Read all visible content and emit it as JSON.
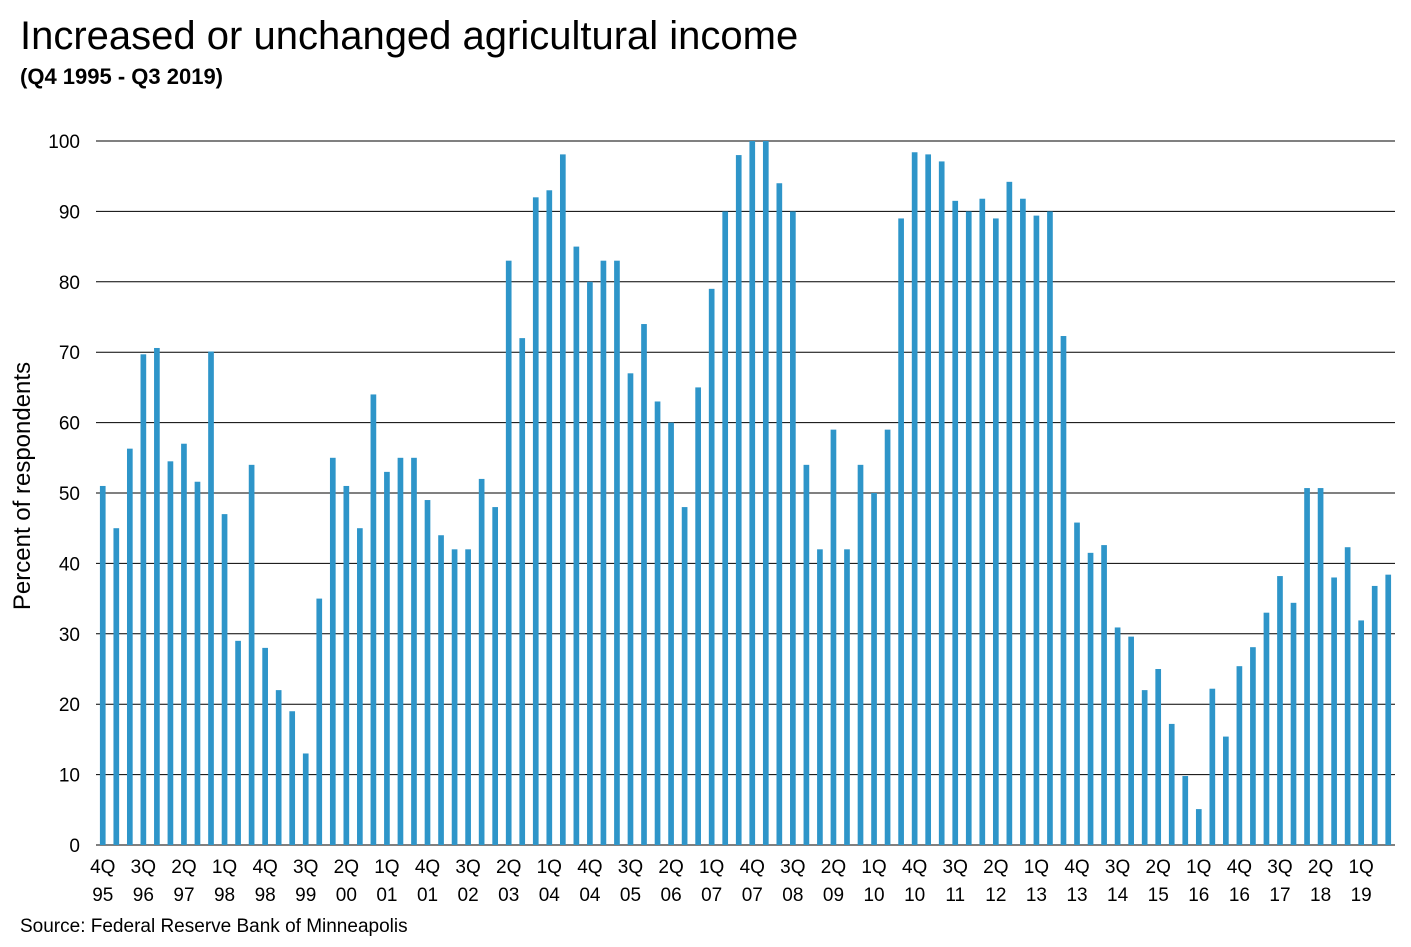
{
  "title": "Increased or unchanged agricultural income",
  "subtitle": "(Q4 1995 - Q3 2019)",
  "source": "Source: Federal Reserve Bank of Minneapolis",
  "colors": {
    "bar": "#2e95c9",
    "grid": "#000000"
  },
  "chart_data": {
    "type": "bar",
    "ylabel": "Percent of respondents",
    "xlabel": "",
    "ylim": [
      0,
      100
    ],
    "yticks": [
      0,
      10,
      20,
      30,
      40,
      50,
      60,
      70,
      80,
      90,
      100
    ],
    "grid": true,
    "legend": "none",
    "x_tick_labels": [
      {
        "index": 0,
        "quarter": "4Q",
        "year": "95"
      },
      {
        "index": 3,
        "quarter": "3Q",
        "year": "96"
      },
      {
        "index": 6,
        "quarter": "2Q",
        "year": "97"
      },
      {
        "index": 9,
        "quarter": "1Q",
        "year": "98"
      },
      {
        "index": 12,
        "quarter": "4Q",
        "year": "98"
      },
      {
        "index": 15,
        "quarter": "3Q",
        "year": "99"
      },
      {
        "index": 18,
        "quarter": "2Q",
        "year": "00"
      },
      {
        "index": 21,
        "quarter": "1Q",
        "year": "01"
      },
      {
        "index": 24,
        "quarter": "4Q",
        "year": "01"
      },
      {
        "index": 27,
        "quarter": "3Q",
        "year": "02"
      },
      {
        "index": 30,
        "quarter": "2Q",
        "year": "03"
      },
      {
        "index": 33,
        "quarter": "1Q",
        "year": "04"
      },
      {
        "index": 36,
        "quarter": "4Q",
        "year": "04"
      },
      {
        "index": 39,
        "quarter": "3Q",
        "year": "05"
      },
      {
        "index": 42,
        "quarter": "2Q",
        "year": "06"
      },
      {
        "index": 45,
        "quarter": "1Q",
        "year": "07"
      },
      {
        "index": 48,
        "quarter": "4Q",
        "year": "07"
      },
      {
        "index": 51,
        "quarter": "3Q",
        "year": "08"
      },
      {
        "index": 54,
        "quarter": "2Q",
        "year": "09"
      },
      {
        "index": 57,
        "quarter": "1Q",
        "year": "10"
      },
      {
        "index": 60,
        "quarter": "4Q",
        "year": "10"
      },
      {
        "index": 63,
        "quarter": "3Q",
        "year": "11"
      },
      {
        "index": 66,
        "quarter": "2Q",
        "year": "12"
      },
      {
        "index": 69,
        "quarter": "1Q",
        "year": "13"
      },
      {
        "index": 72,
        "quarter": "4Q",
        "year": "13"
      },
      {
        "index": 75,
        "quarter": "3Q",
        "year": "14"
      },
      {
        "index": 78,
        "quarter": "2Q",
        "year": "15"
      },
      {
        "index": 81,
        "quarter": "1Q",
        "year": "16"
      },
      {
        "index": 84,
        "quarter": "4Q",
        "year": "16"
      },
      {
        "index": 87,
        "quarter": "3Q",
        "year": "17"
      },
      {
        "index": 90,
        "quarter": "2Q",
        "year": "18"
      },
      {
        "index": 93,
        "quarter": "1Q",
        "year": "19"
      }
    ],
    "values": [
      51,
      45,
      56.3,
      69.7,
      70.6,
      54.5,
      57,
      51.6,
      70.1,
      47,
      29,
      54,
      28,
      22,
      19,
      13,
      35,
      55,
      51,
      45,
      64,
      53,
      55,
      55,
      49,
      44,
      42,
      42,
      52,
      48,
      83,
      72,
      92,
      93,
      98.1,
      85,
      80,
      83,
      83,
      67,
      74,
      63,
      60,
      48,
      65,
      79,
      90,
      98,
      100,
      100,
      94,
      90,
      54,
      42,
      59,
      42,
      54,
      50,
      59,
      89,
      98.4,
      98.1,
      97.1,
      91.5,
      90,
      91.8,
      89,
      94.2,
      91.8,
      89.4,
      90,
      72.3,
      45.8,
      41.5,
      42.6,
      30.9,
      29.6,
      22,
      25,
      17.2,
      9.8,
      5.1,
      22.2,
      15.4,
      25.4,
      28.1,
      33,
      38.2,
      34.4,
      50.7,
      50.7,
      38,
      42.3,
      31.9,
      36.8,
      38.4
    ]
  }
}
